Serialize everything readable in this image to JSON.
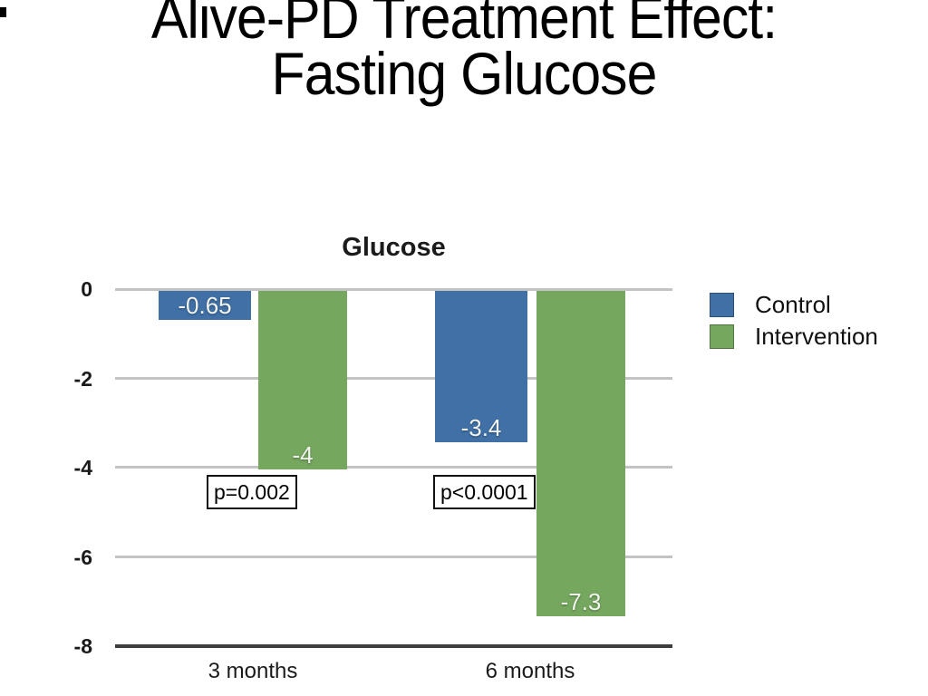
{
  "slide": {
    "title_line1": "Alive-PD Treatment Effect:",
    "title_line2": "Fasting Glucose"
  },
  "chart_data": {
    "type": "bar",
    "title": "Glucose",
    "categories": [
      "3 months",
      "6 months"
    ],
    "series": [
      {
        "name": "Control",
        "color": "#4070A6",
        "values": [
          -0.65,
          -3.4
        ],
        "labels": [
          "-0.65",
          "-3.4"
        ]
      },
      {
        "name": "Intervention",
        "color": "#75A75F",
        "values": [
          -4,
          -7.3
        ],
        "labels": [
          "-4",
          "-7.3"
        ]
      }
    ],
    "annotations": [
      "p=0.002",
      "p<0.0001"
    ],
    "ylim": [
      -8,
      0
    ],
    "yticks": [
      0,
      -2,
      -4,
      -6,
      -8
    ],
    "ytick_labels": [
      "0",
      "-2",
      "-4",
      "-6",
      "-8"
    ],
    "xlabel": "",
    "ylabel": "",
    "grid": true,
    "legend_position": "right"
  }
}
